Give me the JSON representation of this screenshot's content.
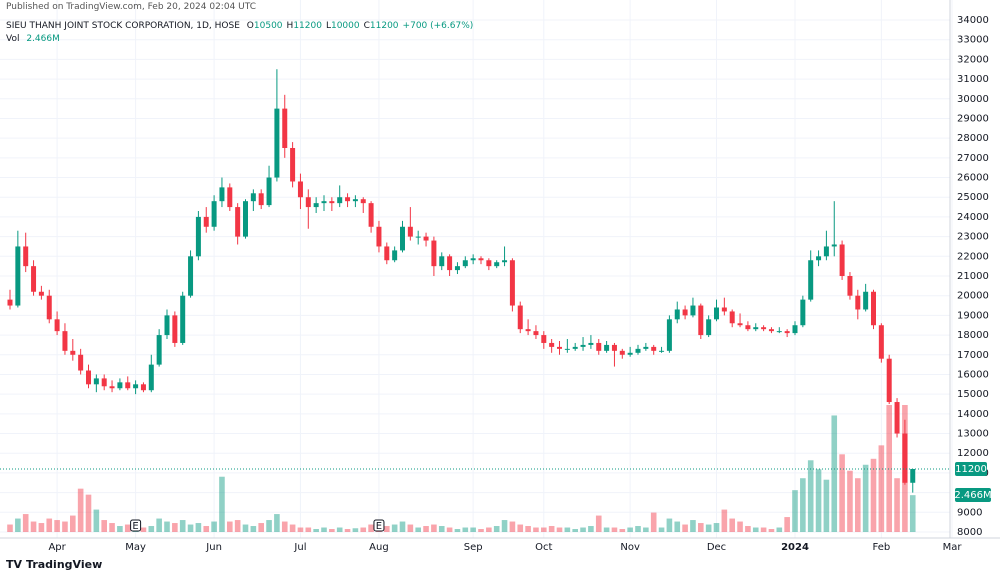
{
  "chart_data": {
    "type": "candlestick",
    "published": "Published on TradingView.com, Feb 20, 2024 02:04 UTC",
    "symbol": "SIEU THANH JOINT STOCK CORPORATION, 1D, HOSE",
    "ohlc_fields": [
      {
        "key": "O",
        "value": 10500
      },
      {
        "key": "H",
        "value": 11200
      },
      {
        "key": "L",
        "value": 10000
      },
      {
        "key": "C",
        "value": 11200
      }
    ],
    "change": "+700 (+6.67%)",
    "volume_title": "Vol",
    "volume_label": "2.466M",
    "brand": "TradingView",
    "up_color": "#089981",
    "down_color": "#f23645",
    "ylim": [
      8000,
      34000
    ],
    "yticks": [
      8000,
      9000,
      10000,
      11000,
      12000,
      13000,
      14000,
      15000,
      16000,
      17000,
      18000,
      19000,
      20000,
      21000,
      22000,
      23000,
      24000,
      25000,
      26000,
      27000,
      28000,
      29000,
      30000,
      31000,
      32000,
      33000,
      34000
    ],
    "grid": true,
    "categories": [
      null,
      null,
      null,
      null,
      null,
      null,
      "Apr",
      null,
      null,
      null,
      null,
      null,
      null,
      null,
      null,
      null,
      "May",
      null,
      null,
      null,
      null,
      null,
      null,
      null,
      null,
      null,
      "Jun",
      null,
      null,
      null,
      null,
      null,
      null,
      null,
      null,
      null,
      null,
      "Jul",
      null,
      null,
      null,
      null,
      null,
      null,
      null,
      null,
      null,
      "Aug",
      null,
      null,
      null,
      null,
      null,
      null,
      null,
      null,
      null,
      null,
      null,
      "Sep",
      null,
      null,
      null,
      null,
      null,
      null,
      null,
      null,
      "Oct",
      null,
      null,
      null,
      null,
      null,
      null,
      null,
      null,
      null,
      null,
      "Nov",
      null,
      null,
      null,
      null,
      null,
      null,
      null,
      null,
      null,
      null,
      "Dec",
      null,
      null,
      null,
      null,
      null,
      null,
      null,
      null,
      null,
      "2024",
      null,
      null,
      null,
      null,
      null,
      null,
      null,
      null,
      null,
      null,
      "Feb",
      null,
      null,
      null,
      null,
      null,
      null,
      null,
      null,
      "Mar"
    ],
    "events": [
      null,
      null,
      null,
      null,
      null,
      null,
      null,
      null,
      null,
      null,
      null,
      null,
      null,
      null,
      null,
      null,
      "E",
      null,
      null,
      null,
      null,
      null,
      null,
      null,
      null,
      null,
      null,
      null,
      null,
      null,
      null,
      null,
      null,
      null,
      null,
      null,
      null,
      null,
      null,
      null,
      null,
      null,
      null,
      null,
      null,
      null,
      null,
      "E",
      null,
      null,
      null,
      null,
      null,
      null,
      null,
      null,
      null,
      null,
      null,
      null,
      null,
      null,
      null,
      null,
      null,
      null,
      null,
      null,
      null,
      null,
      null,
      null,
      null,
      null,
      null,
      null,
      null,
      null,
      null,
      null,
      null,
      null,
      null,
      null,
      null,
      null,
      null,
      null,
      null,
      null,
      null,
      null,
      null,
      null,
      null,
      null,
      null,
      null,
      null,
      null,
      null,
      null,
      null,
      null,
      null,
      null,
      null,
      null,
      null,
      null,
      null,
      null,
      null,
      null,
      null,
      null,
      null,
      null,
      null,
      null,
      null
    ],
    "ohlc": [
      [
        19800,
        20300,
        19300,
        19500
      ],
      [
        19500,
        23300,
        19400,
        22500
      ],
      [
        22500,
        23200,
        21200,
        21500
      ],
      [
        21500,
        21800,
        20000,
        20200
      ],
      [
        20200,
        20500,
        19800,
        20000
      ],
      [
        20000,
        20300,
        18600,
        18800
      ],
      [
        18800,
        19200,
        18000,
        18200
      ],
      [
        18200,
        18600,
        17000,
        17200
      ],
      [
        17200,
        17800,
        16700,
        17000
      ],
      [
        17000,
        17300,
        16000,
        16200
      ],
      [
        16200,
        16500,
        15300,
        15500
      ],
      [
        15500,
        16000,
        15100,
        15800
      ],
      [
        15800,
        16000,
        15200,
        15400
      ],
      [
        15400,
        15700,
        15100,
        15300
      ],
      [
        15300,
        15800,
        15200,
        15600
      ],
      [
        15600,
        15900,
        15200,
        15300
      ],
      [
        15300,
        15700,
        15000,
        15500
      ],
      [
        15500,
        15600,
        15100,
        15200
      ],
      [
        15200,
        17000,
        15100,
        16500
      ],
      [
        16500,
        18300,
        16400,
        18000
      ],
      [
        18000,
        19300,
        17800,
        19000
      ],
      [
        19000,
        19200,
        17400,
        17600
      ],
      [
        17600,
        20200,
        17500,
        20000
      ],
      [
        20000,
        22300,
        19900,
        22000
      ],
      [
        22000,
        24300,
        21800,
        24000
      ],
      [
        24000,
        24500,
        23200,
        23500
      ],
      [
        23500,
        25100,
        23300,
        24800
      ],
      [
        24800,
        26000,
        24500,
        25500
      ],
      [
        25500,
        25700,
        24300,
        24500
      ],
      [
        24500,
        24700,
        22600,
        23000
      ],
      [
        23000,
        24900,
        22900,
        24800
      ],
      [
        24800,
        25400,
        24300,
        25200
      ],
      [
        25200,
        25400,
        24400,
        24600
      ],
      [
        24600,
        26600,
        24500,
        26000
      ],
      [
        26000,
        31500,
        25800,
        29500
      ],
      [
        29500,
        30200,
        27000,
        27500
      ],
      [
        27500,
        27800,
        25500,
        25800
      ],
      [
        25800,
        26200,
        24400,
        25000
      ],
      [
        25000,
        25400,
        23400,
        24500
      ],
      [
        24500,
        25000,
        24200,
        24700
      ],
      [
        24700,
        25100,
        24300,
        24800
      ],
      [
        24800,
        25000,
        24300,
        24700
      ],
      [
        24700,
        25600,
        24500,
        25000
      ],
      [
        25000,
        25200,
        24500,
        24800
      ],
      [
        24800,
        25100,
        24500,
        24900
      ],
      [
        24900,
        25000,
        24200,
        24700
      ],
      [
        24700,
        24800,
        23200,
        23500
      ],
      [
        23500,
        23800,
        22200,
        22500
      ],
      [
        22500,
        22700,
        21600,
        21800
      ],
      [
        21800,
        22500,
        21700,
        22300
      ],
      [
        22300,
        23800,
        22200,
        23500
      ],
      [
        23500,
        24500,
        22800,
        23000
      ],
      [
        23000,
        23300,
        22600,
        23000
      ],
      [
        23000,
        23200,
        22500,
        22800
      ],
      [
        22800,
        23000,
        21000,
        21500
      ],
      [
        21500,
        22200,
        21300,
        22000
      ],
      [
        22000,
        22100,
        21000,
        21300
      ],
      [
        21300,
        21700,
        21100,
        21500
      ],
      [
        21500,
        22000,
        21400,
        21800
      ],
      [
        21800,
        22100,
        21600,
        21900
      ],
      [
        21900,
        22000,
        21600,
        21800
      ],
      [
        21800,
        21900,
        21300,
        21500
      ],
      [
        21500,
        21800,
        21400,
        21700
      ],
      [
        21700,
        22500,
        21500,
        21800
      ],
      [
        21800,
        21900,
        19200,
        19500
      ],
      [
        19500,
        19700,
        18100,
        18300
      ],
      [
        18300,
        18800,
        18000,
        18200
      ],
      [
        18200,
        18500,
        17800,
        18000
      ],
      [
        18000,
        18200,
        17300,
        17600
      ],
      [
        17600,
        17800,
        17100,
        17400
      ],
      [
        17400,
        17700,
        17000,
        17300
      ],
      [
        17300,
        17800,
        17100,
        17300
      ],
      [
        17300,
        17600,
        17200,
        17400
      ],
      [
        17400,
        17900,
        17200,
        17500
      ],
      [
        17500,
        18000,
        17300,
        17600
      ],
      [
        17600,
        17800,
        17000,
        17200
      ],
      [
        17200,
        17700,
        17100,
        17500
      ],
      [
        17500,
        17600,
        16400,
        17200
      ],
      [
        17200,
        17300,
        16800,
        17000
      ],
      [
        17000,
        17400,
        16900,
        17100
      ],
      [
        17100,
        17500,
        17000,
        17300
      ],
      [
        17300,
        17600,
        17200,
        17400
      ],
      [
        17400,
        17500,
        17000,
        17200
      ],
      [
        17200,
        17400,
        17100,
        17200
      ],
      [
        17200,
        19000,
        17100,
        18800
      ],
      [
        18800,
        19700,
        18600,
        19300
      ],
      [
        19300,
        19500,
        18800,
        19000
      ],
      [
        19000,
        19900,
        18900,
        19500
      ],
      [
        19500,
        19600,
        17800,
        18000
      ],
      [
        18000,
        19000,
        17900,
        18800
      ],
      [
        18800,
        19800,
        18700,
        19400
      ],
      [
        19400,
        19900,
        19000,
        19200
      ],
      [
        19200,
        19300,
        18400,
        18600
      ],
      [
        18600,
        19100,
        18400,
        18500
      ],
      [
        18500,
        18700,
        18200,
        18300
      ],
      [
        18300,
        18600,
        18200,
        18400
      ],
      [
        18400,
        18500,
        18200,
        18300
      ],
      [
        18300,
        18400,
        18100,
        18200
      ],
      [
        18200,
        18400,
        18100,
        18200
      ],
      [
        18200,
        18300,
        17900,
        18100
      ],
      [
        18100,
        18700,
        18000,
        18500
      ],
      [
        18500,
        20000,
        18400,
        19800
      ],
      [
        19800,
        22300,
        19700,
        21800
      ],
      [
        21800,
        22300,
        21500,
        22000
      ],
      [
        22000,
        23300,
        21800,
        22500
      ],
      [
        22500,
        24800,
        22000,
        22600
      ],
      [
        22600,
        22800,
        20800,
        21000
      ],
      [
        21000,
        21200,
        19800,
        20000
      ],
      [
        20000,
        20300,
        18800,
        19300
      ],
      [
        19300,
        20600,
        19200,
        20200
      ],
      [
        20200,
        20300,
        18300,
        18500
      ],
      [
        18500,
        18600,
        16600,
        16800
      ],
      [
        16800,
        17000,
        14500,
        14600
      ],
      [
        14600,
        14800,
        12800,
        13000
      ],
      [
        13000,
        13700,
        10400,
        10500
      ],
      [
        10500,
        11200,
        10000,
        11200
      ],
      null,
      null,
      null,
      null,
      null
    ],
    "volume": [
      500000,
      900000,
      1200000,
      700000,
      600000,
      900000,
      800000,
      700000,
      1100000,
      2900000,
      2500000,
      1500000,
      800000,
      600000,
      400000,
      500000,
      300000,
      300000,
      400000,
      900000,
      700000,
      600000,
      800000,
      500000,
      600000,
      400000,
      700000,
      3700000,
      700000,
      800000,
      500000,
      400000,
      600000,
      800000,
      1200000,
      700000,
      500000,
      300000,
      300000,
      200000,
      300000,
      200000,
      300000,
      200000,
      250000,
      300000,
      500000,
      600000,
      400000,
      500000,
      700000,
      500000,
      300000,
      400000,
      500000,
      400000,
      300000,
      200000,
      300000,
      300000,
      200000,
      300000,
      400000,
      800000,
      700000,
      500000,
      400000,
      300000,
      300000,
      400000,
      300000,
      300000,
      200000,
      300000,
      400000,
      1100000,
      300000,
      300000,
      200000,
      300000,
      400000,
      300000,
      1300000,
      300000,
      900000,
      700000,
      500000,
      800000,
      600000,
      500000,
      600000,
      1500000,
      900000,
      700000,
      400000,
      300000,
      300000,
      200000,
      300000,
      1000000,
      2800000,
      3600000,
      4800000,
      4200000,
      3500000,
      7800000,
      5200000,
      4100000,
      3600000,
      4500000,
      4900000,
      5800000,
      8500000,
      3600000,
      8500000,
      2466000,
      null,
      null,
      null,
      null,
      null
    ]
  }
}
